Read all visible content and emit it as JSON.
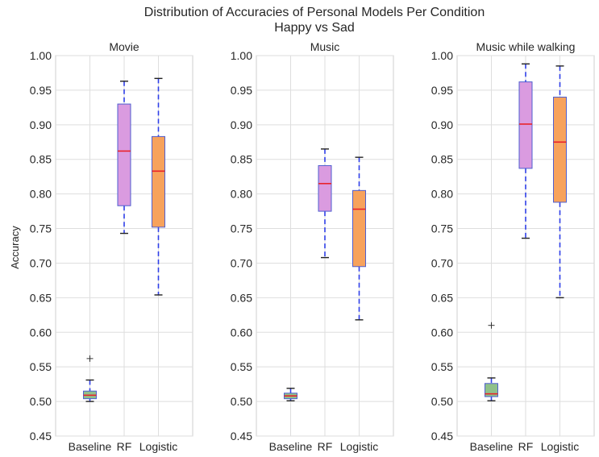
{
  "chart_data": {
    "type": "box",
    "title": "Distribution of Accuracies of Personal Models Per Condition",
    "subtitle": "Happy vs Sad",
    "ylabel": "Accuracy",
    "ylim": [
      0.45,
      1.0
    ],
    "yticks": [
      0.45,
      0.5,
      0.55,
      0.6,
      0.65,
      0.7,
      0.75,
      0.8,
      0.85,
      0.9,
      0.95,
      1.0
    ],
    "ytick_labels": [
      "0.45",
      "0.50",
      "0.55",
      "0.60",
      "0.65",
      "0.70",
      "0.75",
      "0.80",
      "0.85",
      "0.90",
      "0.95",
      "1.00"
    ],
    "grid": true,
    "colors": {
      "baseline": "#8fc08a",
      "rf": "#da9be0",
      "logistic": "#f7a25c",
      "box_edge": "#4f5fd0",
      "median": "#e8222a",
      "whisker": "#2f3fe8"
    },
    "panels": [
      {
        "title": "Movie",
        "categories": [
          "Baseline",
          "RF",
          "Logistic"
        ],
        "boxes": [
          {
            "category": "Baseline",
            "whisker_low": 0.5,
            "q1": 0.504,
            "median": 0.509,
            "q3": 0.515,
            "whisker_high": 0.531,
            "outliers": [
              0.562
            ]
          },
          {
            "category": "RF",
            "whisker_low": 0.743,
            "q1": 0.783,
            "median": 0.862,
            "q3": 0.93,
            "whisker_high": 0.963,
            "outliers": []
          },
          {
            "category": "Logistic",
            "whisker_low": 0.654,
            "q1": 0.752,
            "median": 0.833,
            "q3": 0.883,
            "whisker_high": 0.967,
            "outliers": []
          }
        ]
      },
      {
        "title": "Music",
        "categories": [
          "Baseline",
          "RF",
          "Logistic"
        ],
        "boxes": [
          {
            "category": "Baseline",
            "whisker_low": 0.501,
            "q1": 0.504,
            "median": 0.508,
            "q3": 0.512,
            "whisker_high": 0.519,
            "outliers": []
          },
          {
            "category": "RF",
            "whisker_low": 0.708,
            "q1": 0.775,
            "median": 0.815,
            "q3": 0.841,
            "whisker_high": 0.865,
            "outliers": []
          },
          {
            "category": "Logistic",
            "whisker_low": 0.618,
            "q1": 0.695,
            "median": 0.778,
            "q3": 0.805,
            "whisker_high": 0.853,
            "outliers": []
          }
        ]
      },
      {
        "title": "Music while walking",
        "categories": [
          "Baseline",
          "RF",
          "Logistic"
        ],
        "boxes": [
          {
            "category": "Baseline",
            "whisker_low": 0.501,
            "q1": 0.507,
            "median": 0.511,
            "q3": 0.526,
            "whisker_high": 0.534,
            "outliers": [
              0.61
            ]
          },
          {
            "category": "RF",
            "whisker_low": 0.736,
            "q1": 0.837,
            "median": 0.901,
            "q3": 0.962,
            "whisker_high": 0.988,
            "outliers": []
          },
          {
            "category": "Logistic",
            "whisker_low": 0.65,
            "q1": 0.788,
            "median": 0.875,
            "q3": 0.94,
            "whisker_high": 0.985,
            "outliers": []
          }
        ]
      }
    ]
  }
}
